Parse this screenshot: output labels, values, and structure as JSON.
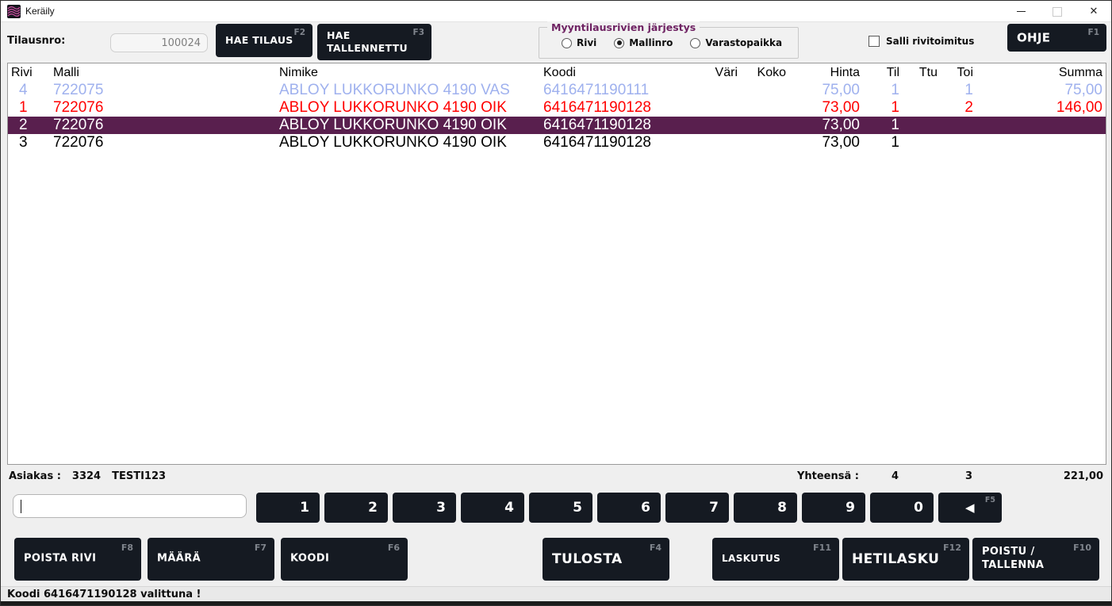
{
  "window": {
    "title": "Keräily"
  },
  "toolbar": {
    "tilausnro_label": "Tilausnro:",
    "tilausnro_value": "100024",
    "hae_tilaus": {
      "label": "HAE TILAUS",
      "fkey": "F2"
    },
    "hae_tallennettu": {
      "label": "HAE TALLENNETTU",
      "fkey": "F3"
    },
    "sort_group": {
      "legend": "Myyntilausrivien järjestys",
      "options": [
        {
          "label": "Rivi",
          "selected": false
        },
        {
          "label": "Mallinro",
          "selected": true
        },
        {
          "label": "Varastopaikka",
          "selected": false
        }
      ]
    },
    "salli_rivitoimitus": {
      "label": "Salli rivitoimitus",
      "checked": false
    },
    "ohje": {
      "label": "OHJE",
      "fkey": "F1"
    }
  },
  "table": {
    "columns": [
      "Rivi",
      "Malli",
      "Nimike",
      "Koodi",
      "Väri",
      "Koko",
      "Hinta",
      "Til",
      "Ttu",
      "Toi",
      "Summa"
    ],
    "rows": [
      {
        "cells": [
          "4",
          "722075",
          "ABLOY LUKKORUNKO 4190 VAS",
          "6416471190111",
          "",
          "",
          "75,00",
          "1",
          "",
          "1",
          "75,00"
        ],
        "color": "#9fb1ee",
        "selected": false
      },
      {
        "cells": [
          "1",
          "722076",
          "ABLOY LUKKORUNKO 4190 OIK",
          "6416471190128",
          "",
          "",
          "73,00",
          "1",
          "",
          "2",
          "146,00"
        ],
        "color": "#ff0000",
        "selected": false
      },
      {
        "cells": [
          "2",
          "722076",
          "ABLOY LUKKORUNKO 4190 OIK",
          "6416471190128",
          "",
          "",
          "73,00",
          "1",
          "",
          "",
          ""
        ],
        "color": "#ffffff",
        "selected": true
      },
      {
        "cells": [
          "3",
          "722076",
          "ABLOY LUKKORUNKO 4190 OIK",
          "6416471190128",
          "",
          "",
          "73,00",
          "1",
          "",
          "",
          ""
        ],
        "color": "#000000",
        "selected": false
      }
    ],
    "selected_row_bg": "#591f4e"
  },
  "summary": {
    "asiakas_label": "Asiakas :",
    "asiakas_number": "3324",
    "asiakas_name": "TESTI123",
    "yhteensa_label": "Yhteensä :",
    "til_total": "4",
    "toi_total": "3",
    "summa_total": "221,00"
  },
  "keypad": {
    "input_value": "",
    "keys": [
      "1",
      "2",
      "3",
      "4",
      "5",
      "6",
      "7",
      "8",
      "9",
      "0"
    ],
    "backspace": {
      "icon": "left-triangle",
      "glyph": "◀",
      "fkey": "F5"
    }
  },
  "actions": [
    {
      "label": "POISTA RIVI",
      "fkey": "F8"
    },
    {
      "label": "MÄÄRÄ",
      "fkey": "F7"
    },
    {
      "label": "KOODI",
      "fkey": "F6"
    },
    {
      "label": "TULOSTA",
      "fkey": "F4"
    },
    {
      "label": "LASKUTUS",
      "fkey": "F11"
    },
    {
      "label": "HETILASKU",
      "fkey": "F12"
    },
    {
      "label": "POISTU / TALLENNA",
      "fkey": "F10"
    }
  ],
  "statusbar": {
    "text": "Koodi 6416471190128 valittuna !"
  },
  "colors": {
    "dark_button": "#151a22",
    "selected_row": "#591f4e",
    "row_blue": "#9fb1ee",
    "row_red": "#ff0000",
    "legend_purple": "#6f2363"
  }
}
